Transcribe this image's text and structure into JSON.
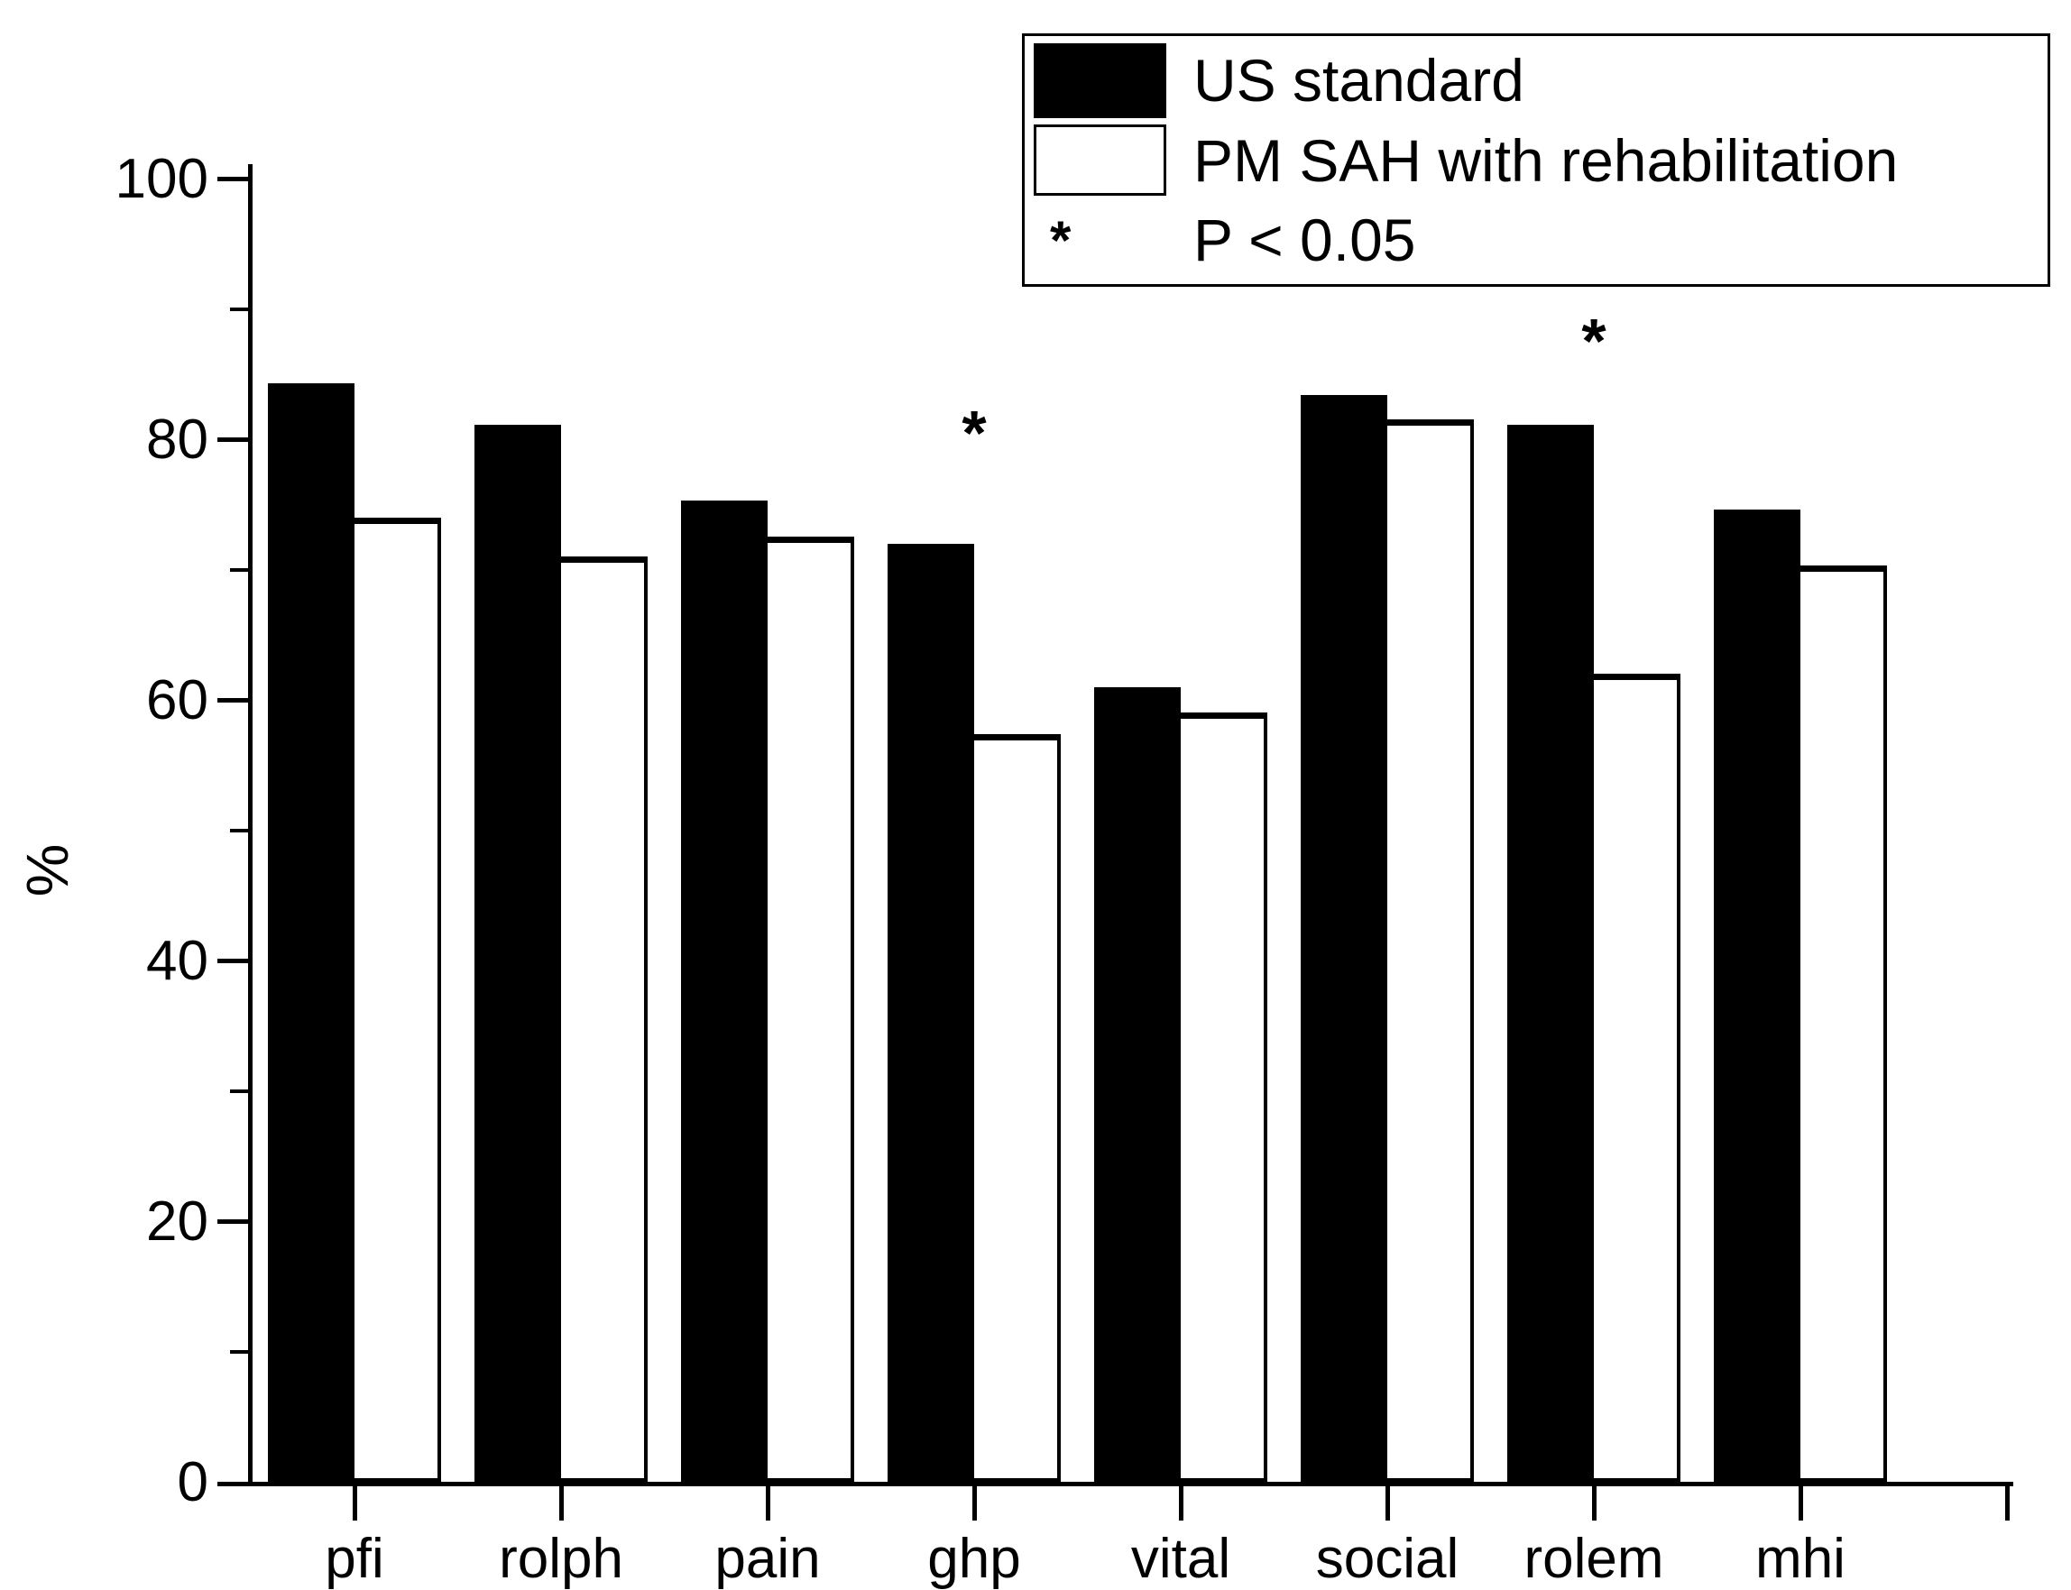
{
  "figure_type": "grouped bar chart (statistical figure, black and white)",
  "ylabel": "%",
  "chart_data": {
    "type": "bar",
    "categories": [
      "pfi",
      "rolph",
      "pain",
      "ghp",
      "vital",
      "social",
      "rolem",
      "mhi"
    ],
    "series": [
      {
        "name": "US standard",
        "style": "solid-black",
        "values": [
          84.3,
          81.1,
          75.3,
          72.0,
          61.0,
          83.4,
          81.1,
          74.6
        ]
      },
      {
        "name": "PM SAH with rehabilitation",
        "style": "white-outlined",
        "values": [
          74.0,
          71.0,
          72.5,
          57.4,
          59.0,
          81.5,
          62.0,
          70.3
        ]
      }
    ],
    "title": "",
    "xlabel": "",
    "ylabel": "%",
    "ylim": [
      0,
      100
    ],
    "yticks": [
      0,
      20,
      40,
      60,
      80,
      100
    ],
    "ytick_labels": [
      "0",
      "20",
      "40",
      "60",
      "80",
      "100"
    ],
    "minor_yticks": [
      10,
      30,
      50,
      70,
      90
    ],
    "grid": false,
    "legend_position": "top-right",
    "annotations": [
      {
        "category": "ghp",
        "symbol": "*",
        "y_value": 81,
        "meaning": "P < 0.05"
      },
      {
        "category": "rolem",
        "symbol": "*",
        "y_value": 88,
        "meaning": "P < 0.05"
      }
    ],
    "legend": {
      "entries": [
        "US standard",
        "PM SAH with rehabilitation"
      ],
      "note": {
        "symbol": "*",
        "text": "P < 0.05"
      }
    },
    "colors": {
      "series1_fill": "#000000",
      "series2_fill": "#ffffff",
      "series2_border": "#000000",
      "axis": "#000000",
      "text": "#000000",
      "background": "#ffffff"
    }
  }
}
